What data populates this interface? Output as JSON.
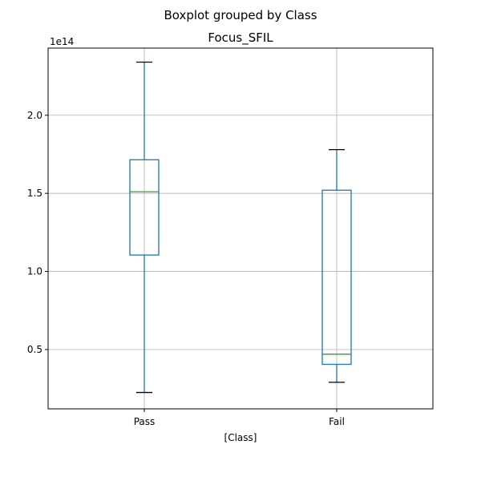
{
  "chart_data": {
    "type": "boxplot",
    "suptitle": "Boxplot grouped by Class",
    "title": "Focus_SFIL",
    "xlabel": "[Class]",
    "ylabel": "",
    "y_offset_label": "1e14",
    "categories": [
      "Pass",
      "Fail"
    ],
    "y_ticks": [
      0.5,
      1.0,
      1.5,
      2.0
    ],
    "y_tick_labels": [
      "0.5",
      "1.0",
      "1.5",
      "2.0"
    ],
    "ylim": [
      0.12,
      2.43
    ],
    "y_scale": "1e14",
    "grid": true,
    "boxes": [
      {
        "category": "Pass",
        "whisker_low": 0.225,
        "q1": 1.105,
        "median": 1.51,
        "q3": 1.715,
        "whisker_high": 2.34
      },
      {
        "category": "Fail",
        "whisker_low": 0.29,
        "q1": 0.405,
        "median": 0.47,
        "q3": 1.52,
        "whisker_high": 1.78
      }
    ],
    "colors": {
      "box": "#1f77b4",
      "median": "#2ca02c",
      "cap": "#000000",
      "grid": "#b0b0b0"
    }
  }
}
